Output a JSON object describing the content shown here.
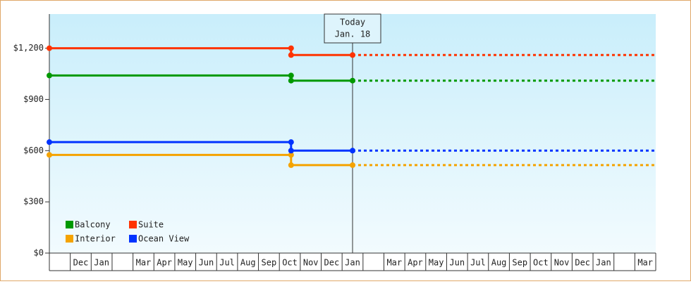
{
  "chart_data": {
    "type": "line",
    "categories": [
      null,
      "Dec",
      "Jan",
      null,
      "Mar",
      "Apr",
      "May",
      "Jun",
      "Jul",
      "Aug",
      "Sep",
      "Oct",
      "Nov",
      "Dec",
      "Jan",
      null,
      "Mar",
      "Apr",
      "May",
      "Jun",
      "Jul",
      "Aug",
      "Sep",
      "Oct",
      "Nov",
      "Dec",
      "Jan",
      null,
      "Mar"
    ],
    "xlim": [
      0,
      29
    ],
    "ylim": [
      0,
      1400
    ],
    "yticks": [
      {
        "value": 0,
        "label": "$0"
      },
      {
        "value": 300,
        "label": "$300"
      },
      {
        "value": 600,
        "label": "$600"
      },
      {
        "value": 900,
        "label": "$900"
      },
      {
        "value": 1200,
        "label": "$1,200"
      }
    ],
    "series": [
      {
        "name": "Balcony",
        "color": "#009900",
        "x": [
          0,
          11.56,
          11.56,
          14.5
        ],
        "values": [
          1040,
          1040,
          1010,
          1010
        ]
      },
      {
        "name": "Suite",
        "color": "#ff3300",
        "x": [
          0,
          11.56,
          11.56,
          14.5
        ],
        "values": [
          1200,
          1200,
          1160,
          1160
        ]
      },
      {
        "name": "Interior",
        "color": "#f5a300",
        "x": [
          0,
          11.56,
          11.56,
          14.5
        ],
        "values": [
          575,
          575,
          515,
          515
        ]
      },
      {
        "name": "Ocean View",
        "color": "#0033ff",
        "x": [
          0,
          11.56,
          11.56,
          14.5
        ],
        "values": [
          650,
          650,
          600,
          600
        ]
      }
    ],
    "annotation": {
      "lines": [
        "Today",
        "Jan. 18"
      ],
      "x": 14.5
    },
    "legend": "lower-left"
  }
}
